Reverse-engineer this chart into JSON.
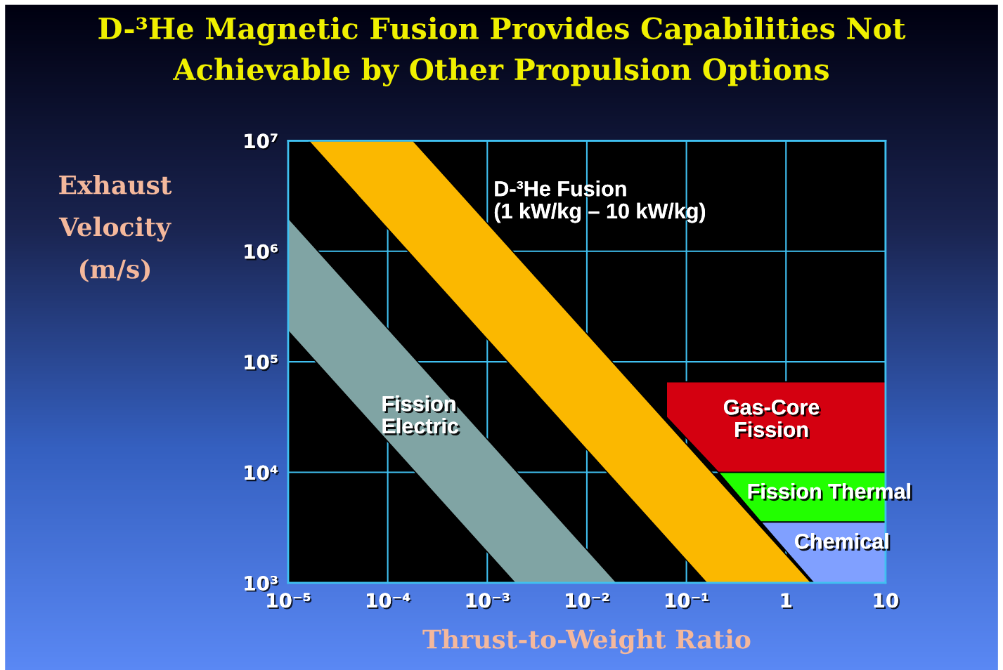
{
  "chart_data": {
    "type": "area",
    "title": "D-³He Magnetic Fusion Provides Capabilities Not\nAchievable by Other Propulsion Options",
    "xlabel": "Thrust-to-Weight Ratio",
    "ylabel": "Exhaust\nVelocity\n(m/s)",
    "log": "xy",
    "grid": true,
    "xlim": [
      1e-05,
      10
    ],
    "ylim": [
      1000,
      10000000
    ],
    "xticks": [
      {
        "value": 1e-05,
        "label": "10⁻⁵"
      },
      {
        "value": 0.0001,
        "label": "10⁻⁴"
      },
      {
        "value": 0.001,
        "label": "10⁻³"
      },
      {
        "value": 0.01,
        "label": "10⁻²"
      },
      {
        "value": 0.1,
        "label": "10⁻¹"
      },
      1,
      10
    ],
    "yticks": [
      {
        "value": 1000,
        "label": "10³"
      },
      {
        "value": 10000,
        "label": "10⁴"
      },
      {
        "value": 100000,
        "label": "10⁵"
      },
      {
        "value": 1000000,
        "label": "10⁶"
      },
      {
        "value": 10000000,
        "label": "10⁷"
      }
    ],
    "series": [
      {
        "name": "Fission\nElectric",
        "color": "#80a4a4",
        "x": [
          1e-05,
          0.0019,
          0.02,
          1e-05
        ],
        "values": [
          190000,
          1000,
          1000,
          2000000
        ]
      },
      {
        "name": "Gas-Core\nFission",
        "color": "#d40010",
        "x": [
          0.063,
          0.21,
          10,
          10,
          0.063
        ],
        "values": [
          31600,
          10000,
          10000,
          66000,
          66000
        ]
      },
      {
        "name": "Fission Thermal",
        "color": "#22ff00",
        "x": [
          0.21,
          0.56,
          10,
          10
        ],
        "values": [
          10000,
          3550,
          3550,
          10000
        ]
      },
      {
        "name": "Chemical",
        "color": "#80a0ff",
        "x": [
          0.56,
          1.9,
          10,
          10
        ],
        "values": [
          3550,
          1000,
          1000,
          3550
        ]
      },
      {
        "name": "D-³He Fusion\n(1 kW/kg – 10 kW/kg)",
        "color": "#fbb800",
        "x": [
          1.6e-05,
          0.16,
          1.8,
          0.00018
        ],
        "values": [
          10000000,
          1000,
          1000,
          10000000
        ]
      }
    ]
  }
}
